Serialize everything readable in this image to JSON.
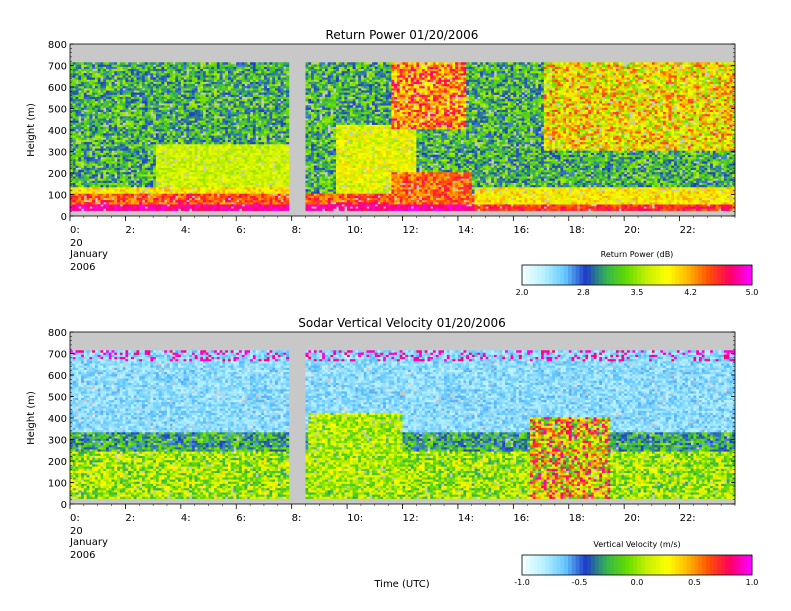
{
  "chart_data": [
    {
      "type": "heatmap",
      "title": "Return Power 01/20/2006",
      "ylabel": "Height (m)",
      "xlabel": "",
      "ylim": [
        0,
        800
      ],
      "y_ticks": [
        "0",
        "100",
        "200",
        "300",
        "400",
        "500",
        "600",
        "700",
        "800"
      ],
      "x_ticks": [
        "0:",
        "2:",
        "4:",
        "6:",
        "8:",
        "10:",
        "12:",
        "14:",
        "16:",
        "18:",
        "20:",
        "22:"
      ],
      "date_label": [
        "20",
        "January",
        "2006"
      ],
      "data_gap_hours": [
        7.9,
        8.5
      ],
      "data_height_range_m": [
        25,
        715
      ],
      "colorbar": {
        "label": "Return Power (dB)",
        "range": [
          2.0,
          5.0
        ],
        "ticks": [
          "2.0",
          "2.8",
          "3.5",
          "4.2",
          "5.0"
        ]
      },
      "description_values": {
        "near_surface_max": 5.0,
        "upper_levels_typical": 3.3
      }
    },
    {
      "type": "heatmap",
      "title": "Sodar Vertical Velocity 01/20/2006",
      "ylabel": "Height (m)",
      "xlabel": "Time (UTC)",
      "ylim": [
        0,
        800
      ],
      "y_ticks": [
        "0",
        "100",
        "200",
        "300",
        "400",
        "500",
        "600",
        "700",
        "800"
      ],
      "x_ticks": [
        "0:",
        "2:",
        "4:",
        "6:",
        "8:",
        "10:",
        "12:",
        "14:",
        "16:",
        "18:",
        "20:",
        "22:"
      ],
      "date_label": [
        "20",
        "January",
        "2006"
      ],
      "data_gap_hours": [
        7.9,
        8.5
      ],
      "data_height_range_m": [
        25,
        715
      ],
      "colorbar": {
        "label": "Vertical Velocity (m/s)",
        "range": [
          -1.0,
          1.0
        ],
        "ticks": [
          "-1.0",
          "-0.5",
          "0.0",
          "0.5",
          "1.0"
        ]
      }
    }
  ],
  "colors": {
    "background": "#ffffff",
    "no_data": "#c8c8c8",
    "colormap": [
      "#f0ffff",
      "#b4f0ff",
      "#64c8ff",
      "#1e3cc8",
      "#32b450",
      "#64dc00",
      "#c8f000",
      "#ffff00",
      "#ffb400",
      "#ff5000",
      "#ff0064",
      "#ff00ff"
    ]
  }
}
